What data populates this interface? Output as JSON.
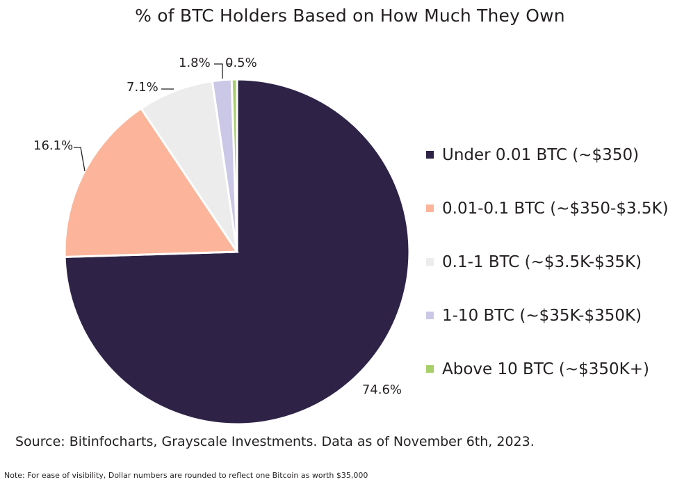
{
  "chart_data": {
    "type": "pie",
    "title": "% of BTC Holders Based on How Much They Own",
    "slices": [
      {
        "label": "Under 0.01 BTC (~$350)",
        "value": 74.6,
        "value_label": "74.6%",
        "color": "#2e2347"
      },
      {
        "label": "0.01-0.1 BTC (~$350-$3.5K)",
        "value": 16.1,
        "value_label": "16.1%",
        "color": "#fcb59a"
      },
      {
        "label": "0.1-1 BTC (~$3.5K-$35K)",
        "value": 7.1,
        "value_label": "7.1%",
        "color": "#ececec"
      },
      {
        "label": "1-10 BTC (~$35K-$350K)",
        "value": 1.8,
        "value_label": "1.8%",
        "color": "#cbc7e6"
      },
      {
        "label": "Above 10 BTC (~$350K+)",
        "value": 0.5,
        "value_label": "0.5%",
        "color": "#a9cf6b"
      }
    ],
    "legend_position": "right"
  },
  "source": "Source: Bitinfocharts, Grayscale Investments. Data as of November 6th, 2023.",
  "note": "Note: For ease of visibility, Dollar numbers are rounded to reflect one Bitcoin as worth $35,000"
}
